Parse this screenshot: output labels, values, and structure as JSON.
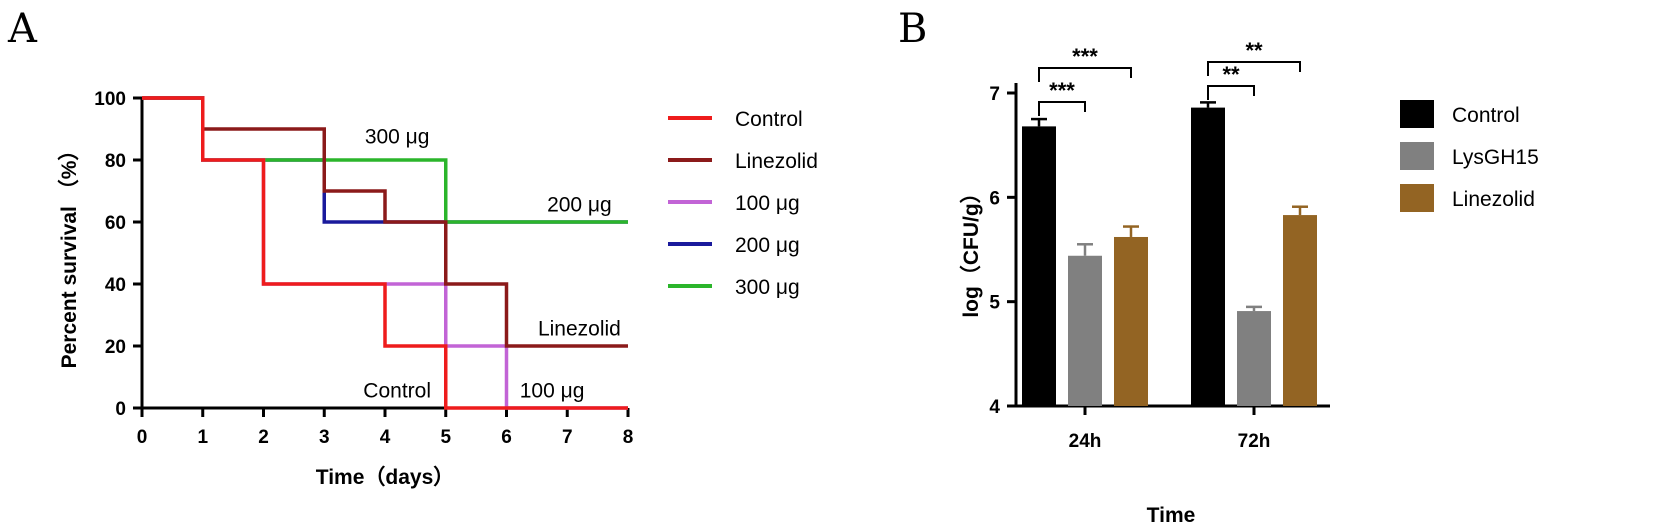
{
  "chart_data": [
    {
      "panel": "A",
      "type": "line",
      "subtype": "step",
      "xlabel": "Time（days）",
      "ylabel": "Percent survival （%）",
      "xlim": [
        0,
        8
      ],
      "ylim": [
        0,
        100
      ],
      "xticks": [
        0,
        1,
        2,
        3,
        4,
        5,
        6,
        7,
        8
      ],
      "yticks": [
        0,
        20,
        40,
        60,
        80,
        100
      ],
      "series": [
        {
          "name": "Control",
          "color": "#ee1c1c",
          "x": [
            0,
            1,
            2,
            4,
            5,
            8
          ],
          "y": [
            100,
            80,
            40,
            20,
            0,
            0
          ]
        },
        {
          "name": "Linezolid",
          "color": "#8b1a1a",
          "x": [
            0,
            1,
            3,
            4,
            5,
            6,
            8
          ],
          "y": [
            100,
            90,
            70,
            60,
            40,
            20,
            20
          ]
        },
        {
          "name": "100 μg",
          "color": "#c264d6",
          "x": [
            0,
            1,
            2,
            4,
            5,
            6,
            8
          ],
          "y": [
            100,
            80,
            40,
            40,
            20,
            0,
            0
          ]
        },
        {
          "name": "200 μg",
          "color": "#1a1a9c",
          "x": [
            0,
            1,
            3,
            8
          ],
          "y": [
            100,
            80,
            60,
            60
          ]
        },
        {
          "name": "300 μg",
          "color": "#2bb52b",
          "x": [
            0,
            1,
            5,
            8
          ],
          "y": [
            100,
            80,
            60,
            60
          ]
        }
      ],
      "annotations": [
        {
          "text": "300 μg",
          "x": 4.2,
          "y": 86
        },
        {
          "text": "200 μg",
          "x": 7.2,
          "y": 64
        },
        {
          "text": "Linezolid",
          "x": 7.2,
          "y": 24
        },
        {
          "text": "Control",
          "x": 4.2,
          "y": 4
        },
        {
          "text": "100 μg",
          "x": 6.75,
          "y": 4
        }
      ],
      "legend": [
        "Control",
        "Linezolid",
        "100 μg",
        "200 μg",
        "300 μg"
      ]
    },
    {
      "panel": "B",
      "type": "bar",
      "categories": [
        "24h",
        "72h"
      ],
      "xlabel": "Time",
      "ylabel": "log（CFU/g）",
      "ylim": [
        4,
        7
      ],
      "yticks": [
        4,
        5,
        6,
        7
      ],
      "series": [
        {
          "name": "Control",
          "color": "#000000",
          "values": [
            6.68,
            6.86
          ],
          "errors": [
            0.07,
            0.05
          ]
        },
        {
          "name": "LysGH15",
          "color": "#808080",
          "values": [
            5.44,
            4.91
          ],
          "errors": [
            0.11,
            0.04
          ]
        },
        {
          "name": "Linezolid",
          "color": "#936423",
          "values": [
            5.62,
            5.83
          ],
          "errors": [
            0.1,
            0.08
          ]
        }
      ],
      "significance": [
        {
          "category": "24h",
          "from": "Control",
          "to": "LysGH15",
          "label": "***"
        },
        {
          "category": "24h",
          "from": "Control",
          "to": "Linezolid",
          "label": "***"
        },
        {
          "category": "72h",
          "from": "Control",
          "to": "LysGH15",
          "label": "**"
        },
        {
          "category": "72h",
          "from": "Control",
          "to": "Linezolid",
          "label": "**"
        }
      ],
      "legend": [
        "Control",
        "LysGH15",
        "Linezolid"
      ]
    }
  ]
}
